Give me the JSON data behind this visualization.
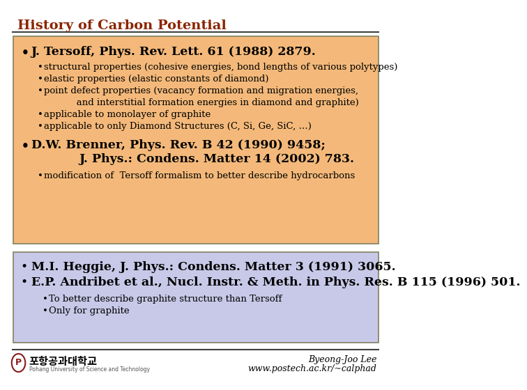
{
  "background_color": "#ffffff",
  "title": "History of Carbon Potential",
  "title_color": "#8B2500",
  "title_fontsize": 14,
  "box1_bg": "#F4B97A",
  "box1_border": "#808060",
  "box2_bg": "#C8C8E8",
  "box2_border": "#808060",
  "footer_right1": "Byeong-Joo Lee",
  "footer_right2": "www.postech.ac.kr/~calphad",
  "tersoff_main": "J. Tersoff, Phys. Rev. Lett. 61 (1988) 2879.",
  "tersoff_subs": [
    "structural properties (cohesive energies, bond lengths of various polytypes)",
    "elastic properties (elastic constants of diamond)",
    "point defect properties (vacancy formation and migration energies,",
    "           and interstitial formation energies in diamond and graphite)",
    "applicable to monolayer of graphite",
    "applicable to only Diamond Structures (C, Si, Ge, SiC, …)"
  ],
  "brenner_main1": "D.W. Brenner, Phys. Rev. B 42 (1990) 9458;",
  "brenner_main2": "J. Phys.: Condens. Matter 14 (2002) 783.",
  "brenner_sub": "modification of  Tersoff formalism to better describe hydrocarbons",
  "heggie_main": "M.I. Heggie, J. Phys.: Condens. Matter 3 (1991) 3065.",
  "andribet_main": "E.P. Andribet et al., Nucl. Instr. & Meth. in Phys. Res. B 115 (1996) 501.",
  "box2_subs": [
    "To better describe graphite structure than Tersoff",
    "Only for graphite"
  ]
}
